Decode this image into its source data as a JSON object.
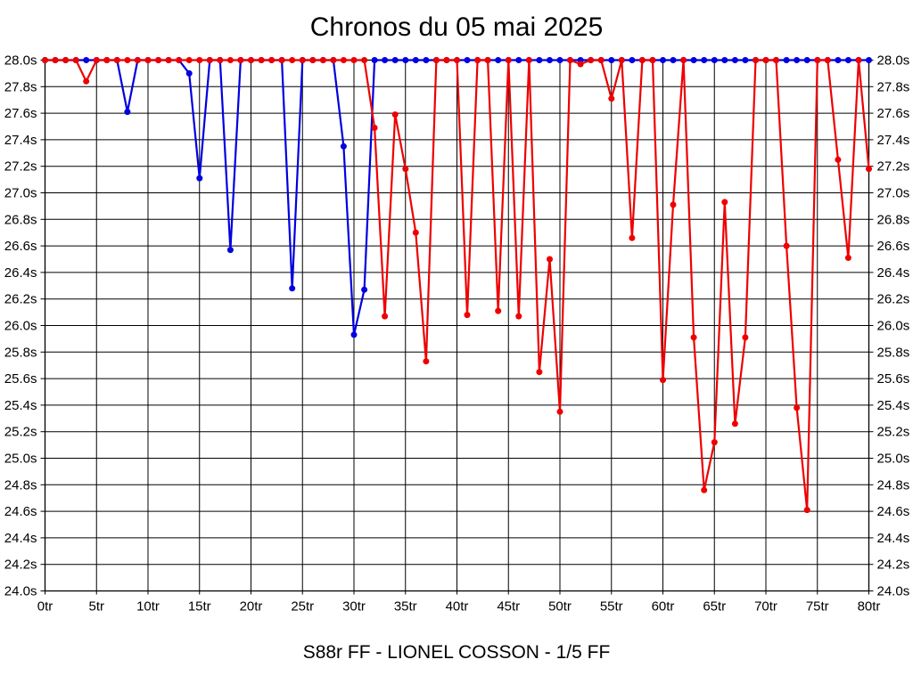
{
  "title": "Chronos du 05 mai 2025",
  "subtitle": "S88r FF - LIONEL COSSON - 1/5 FF",
  "colors": {
    "series_blue": "#0000e0",
    "series_red": "#ee0000",
    "grid": "#000000",
    "frame": "#000000",
    "text": "#000000",
    "background": "#ffffff"
  },
  "chart_data": {
    "type": "line",
    "title": "Chronos du 05 mai 2025",
    "xlabel": "",
    "ylabel": "",
    "x_unit": "tr",
    "y_unit": "s",
    "xlim": [
      0,
      80
    ],
    "ylim": [
      24.0,
      28.0
    ],
    "x_tick_step": 5,
    "y_tick_step": 0.2,
    "grid": "on-black-both-axes",
    "legend": "none",
    "x_tick_labels": [
      "0tr",
      "5tr",
      "10tr",
      "15tr",
      "20tr",
      "25tr",
      "30tr",
      "35tr",
      "40tr",
      "45tr",
      "50tr",
      "55tr",
      "60tr",
      "65tr",
      "70tr",
      "75tr",
      "80tr"
    ],
    "y_tick_labels": [
      "28.0s",
      "27.8s",
      "27.6s",
      "27.4s",
      "27.2s",
      "27.0s",
      "26.8s",
      "26.6s",
      "26.4s",
      "26.2s",
      "26.0s",
      "25.8s",
      "25.6s",
      "25.4s",
      "25.2s",
      "25.0s",
      "24.8s",
      "24.6s",
      "24.4s",
      "24.2s",
      "24.0s"
    ],
    "x": [
      0,
      1,
      2,
      3,
      4,
      5,
      6,
      7,
      8,
      9,
      10,
      11,
      12,
      13,
      14,
      15,
      16,
      17,
      18,
      19,
      20,
      21,
      22,
      23,
      24,
      25,
      26,
      27,
      28,
      29,
      30,
      31,
      32,
      33,
      34,
      35,
      36,
      37,
      38,
      39,
      40,
      41,
      42,
      43,
      44,
      45,
      46,
      47,
      48,
      49,
      50,
      51,
      52,
      53,
      54,
      55,
      56,
      57,
      58,
      59,
      60,
      61,
      62,
      63,
      64,
      65,
      66,
      67,
      68,
      69,
      70,
      71,
      72,
      73,
      74,
      75,
      76,
      77,
      78,
      79,
      80
    ],
    "series": [
      {
        "name": "chrono-blue",
        "color": "#0000e0",
        "values": [
          28,
          28,
          28,
          28,
          28,
          28,
          28,
          28,
          27.61,
          28,
          28,
          28,
          28,
          28,
          27.9,
          27.11,
          28,
          28,
          26.57,
          28,
          28,
          28,
          28,
          28,
          26.28,
          28,
          28,
          28,
          28,
          27.35,
          25.93,
          26.27,
          28,
          28,
          28,
          28,
          28,
          28,
          28,
          28,
          28,
          28,
          28,
          28,
          28,
          28,
          28,
          28,
          28,
          28,
          28,
          28,
          28,
          28,
          28,
          28,
          28,
          28,
          28,
          28,
          28,
          28,
          28,
          28,
          28,
          28,
          28,
          28,
          28,
          28,
          28,
          28,
          28,
          28,
          28,
          28,
          28,
          28,
          28,
          28,
          28
        ]
      },
      {
        "name": "chrono-red",
        "color": "#ee0000",
        "values": [
          28,
          28,
          28,
          28,
          27.84,
          28,
          28,
          28,
          28,
          28,
          28,
          28,
          28,
          28,
          28,
          28,
          28,
          28,
          28,
          28,
          28,
          28,
          28,
          28,
          28,
          28,
          28,
          28,
          28,
          28,
          28,
          28,
          27.49,
          26.07,
          27.59,
          27.18,
          26.7,
          25.73,
          28,
          28,
          28,
          26.08,
          28,
          28,
          26.11,
          28,
          26.07,
          28,
          25.65,
          26.5,
          25.35,
          28,
          27.97,
          28,
          28,
          27.71,
          28,
          26.66,
          28,
          28,
          25.59,
          26.91,
          28,
          25.91,
          24.76,
          25.12,
          26.93,
          25.26,
          25.91,
          28,
          28,
          28,
          26.6,
          25.38,
          24.61,
          28,
          28,
          27.25,
          26.51,
          28,
          27.18
        ]
      }
    ]
  }
}
